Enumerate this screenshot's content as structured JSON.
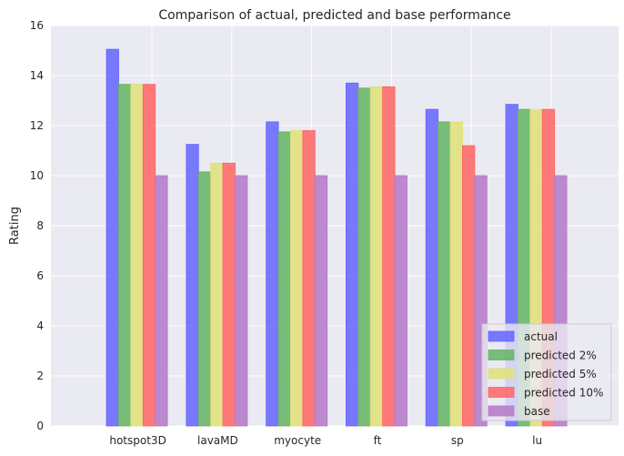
{
  "chart_data": {
    "type": "bar",
    "title": "Comparison of actual, predicted and base performance",
    "xlabel": "",
    "ylabel": "Rating",
    "ylim": [
      0,
      16
    ],
    "yticks": [
      0,
      2,
      4,
      6,
      8,
      10,
      12,
      14,
      16
    ],
    "grid": true,
    "legend_position": "bottom-right",
    "categories": [
      "hotspot3D",
      "lavaMD",
      "myocyte",
      "ft",
      "sp",
      "lu"
    ],
    "series": [
      {
        "name": "actual",
        "color": "#6464ff",
        "values": [
          15.05,
          11.25,
          12.15,
          13.7,
          12.65,
          12.85
        ]
      },
      {
        "name": "predicted 2%",
        "color": "#64b464",
        "values": [
          13.65,
          10.15,
          11.75,
          13.5,
          12.15,
          12.65
        ]
      },
      {
        "name": "predicted 5%",
        "color": "#e1e178",
        "values": [
          13.65,
          10.5,
          11.8,
          13.55,
          12.15,
          12.65
        ]
      },
      {
        "name": "predicted 10%",
        "color": "#ff6464",
        "values": [
          13.65,
          10.5,
          11.8,
          13.55,
          11.2,
          12.65
        ]
      },
      {
        "name": "base",
        "color": "#b478c8",
        "values": [
          10,
          10,
          10,
          10,
          10,
          10
        ]
      }
    ]
  }
}
